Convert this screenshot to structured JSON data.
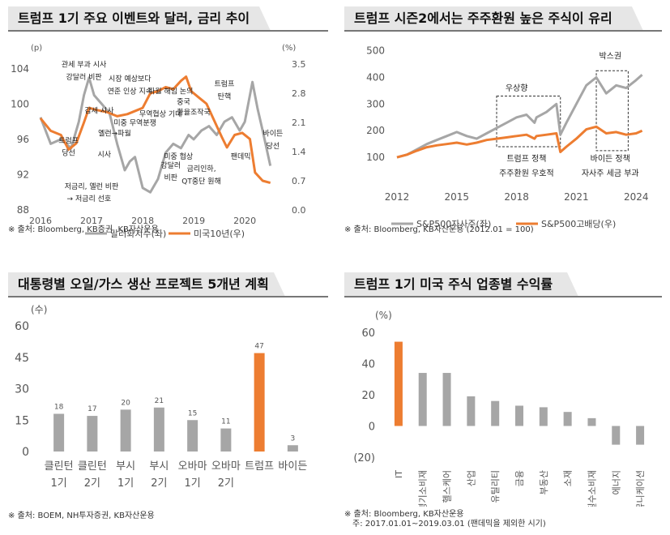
{
  "chart_data": [
    {
      "type": "line",
      "title": "트럼프 1기 주요 이벤트와 달러, 금리 추이",
      "ylabel_left": "(p)",
      "ylabel_right": "(%)",
      "x_ticks": [
        "2016",
        "2017",
        "2018",
        "2019",
        "2020"
      ],
      "y_left_ticks": [
        88,
        92,
        96,
        100,
        104
      ],
      "y_right_ticks": [
        0.0,
        0.7,
        1.4,
        2.1,
        2.8,
        3.5
      ],
      "ylim_left": [
        88,
        105
      ],
      "ylim_right": [
        0.0,
        3.6
      ],
      "series": [
        {
          "name": "달러화지수(좌)",
          "color": "#a6a6a6",
          "x": [
            2016.0,
            2016.2,
            2016.4,
            2016.6,
            2016.75,
            2016.85,
            2016.95,
            2017.05,
            2017.2,
            2017.35,
            2017.5,
            2017.65,
            2017.75,
            2017.85,
            2018.0,
            2018.15,
            2018.3,
            2018.45,
            2018.6,
            2018.75,
            2018.9,
            2019.0,
            2019.15,
            2019.3,
            2019.45,
            2019.6,
            2019.75,
            2019.9,
            2020.0,
            2020.15,
            2020.25,
            2020.35,
            2020.5
          ],
          "values": [
            98.5,
            95.5,
            96.0,
            95.0,
            98.0,
            101.0,
            103.0,
            101.0,
            100.0,
            99.0,
            95.5,
            92.5,
            93.5,
            94.0,
            90.5,
            90.0,
            91.5,
            94.5,
            95.5,
            95.0,
            96.5,
            96.0,
            97.0,
            97.5,
            96.5,
            98.0,
            98.5,
            97.0,
            98.0,
            102.5,
            99.5,
            97.0,
            93.0
          ]
        },
        {
          "name": "미국10년(우)",
          "color": "#ed7d31",
          "x": [
            2016.0,
            2016.2,
            2016.4,
            2016.55,
            2016.7,
            2016.85,
            2016.95,
            2017.1,
            2017.3,
            2017.5,
            2017.7,
            2017.9,
            2018.0,
            2018.15,
            2018.3,
            2018.45,
            2018.6,
            2018.75,
            2018.85,
            2018.95,
            2019.1,
            2019.25,
            2019.4,
            2019.55,
            2019.65,
            2019.8,
            2019.95,
            2020.1,
            2020.2,
            2020.35,
            2020.5
          ],
          "values": [
            2.2,
            1.9,
            1.8,
            1.45,
            1.6,
            2.1,
            2.45,
            2.4,
            2.35,
            2.25,
            2.3,
            2.4,
            2.45,
            2.8,
            2.85,
            2.95,
            2.9,
            3.1,
            3.2,
            2.85,
            2.7,
            2.55,
            2.15,
            1.75,
            1.5,
            1.8,
            1.85,
            1.7,
            0.9,
            0.7,
            0.65
          ]
        }
      ],
      "annotations": [
        {
          "text": "관세 부과 시사",
          "x": 2016.85,
          "y": 104.2
        },
        {
          "text": "강달러 비판",
          "x": 2016.85,
          "y": 102.8
        },
        {
          "text": "시장 예상보다",
          "x": 2017.75,
          "y": 102.6
        },
        {
          "text": "연준 인상 지속",
          "x": 2017.75,
          "y": 101.2
        },
        {
          "text": "파월 해임 논의",
          "x": 2018.55,
          "y": 101.2
        },
        {
          "text": "중국",
          "x": 2018.8,
          "y": 100.0
        },
        {
          "text": "환율조작국",
          "x": 2019.0,
          "y": 98.8
        },
        {
          "text": "트럼프",
          "x": 2019.6,
          "y": 102.0
        },
        {
          "text": "탄핵",
          "x": 2019.6,
          "y": 100.6
        },
        {
          "text": "감세 시사",
          "x": 2017.15,
          "y": 99.0
        },
        {
          "text": "미중 무역분쟁",
          "x": 2017.85,
          "y": 97.6
        },
        {
          "text": "무역협상 기대",
          "x": 2018.35,
          "y": 98.6
        },
        {
          "text": "옐런→파월",
          "x": 2017.45,
          "y": 96.4
        },
        {
          "text": "트럼프",
          "x": 2016.55,
          "y": 95.6
        },
        {
          "text": "당선",
          "x": 2016.55,
          "y": 94.2
        },
        {
          "text": "시사",
          "x": 2017.25,
          "y": 94.0
        },
        {
          "text": "미중 협상",
          "x": 2018.7,
          "y": 93.8
        },
        {
          "text": "강달러",
          "x": 2018.55,
          "y": 92.8
        },
        {
          "text": "비판",
          "x": 2018.55,
          "y": 91.4
        },
        {
          "text": "금리인하,",
          "x": 2019.15,
          "y": 92.4
        },
        {
          "text": "QT중단 원해",
          "x": 2019.15,
          "y": 91.0
        },
        {
          "text": "팬데믹",
          "x": 2019.92,
          "y": 93.8
        },
        {
          "text": "바이든",
          "x": 2020.55,
          "y": 96.4
        },
        {
          "text": "당선",
          "x": 2020.55,
          "y": 95.0
        },
        {
          "text": "저금리, 옐런 비판",
          "x": 2017.0,
          "y": 90.4
        },
        {
          "text": "→ 저금리 선호",
          "x": 2016.95,
          "y": 89.0
        }
      ],
      "source": "※ 출처: Bloomberg, KB증권, KB자산운용"
    },
    {
      "type": "line",
      "title": "트럼프 시즌2에서는 주주환원 높은 주식이 유리",
      "x_ticks": [
        "2012",
        "2015",
        "2018",
        "2021",
        "2024"
      ],
      "y_ticks": [
        100,
        200,
        300,
        400,
        500
      ],
      "ylim": [
        0,
        520
      ],
      "series": [
        {
          "name": "S&P500자사주(좌)",
          "color": "#a6a6a6",
          "x": [
            2012.0,
            2012.5,
            2013.0,
            2013.5,
            2014.0,
            2014.5,
            2015.0,
            2015.5,
            2016.0,
            2016.5,
            2017.0,
            2017.5,
            2018.0,
            2018.5,
            2018.9,
            2019.0,
            2019.5,
            2020.0,
            2020.2,
            2020.5,
            2021.0,
            2021.5,
            2022.0,
            2022.5,
            2023.0,
            2023.5,
            2024.0,
            2024.3
          ],
          "values": [
            100,
            110,
            130,
            150,
            165,
            180,
            195,
            180,
            170,
            190,
            210,
            230,
            250,
            260,
            230,
            250,
            270,
            300,
            185,
            230,
            300,
            370,
            400,
            340,
            370,
            360,
            390,
            410
          ]
        },
        {
          "name": "S&P500고배당(우)",
          "color": "#ed7d31",
          "x": [
            2012.0,
            2012.5,
            2013.0,
            2013.5,
            2014.0,
            2014.5,
            2015.0,
            2015.5,
            2016.0,
            2016.5,
            2017.0,
            2017.5,
            2018.0,
            2018.5,
            2018.9,
            2019.0,
            2019.5,
            2020.0,
            2020.2,
            2020.5,
            2021.0,
            2021.5,
            2022.0,
            2022.5,
            2023.0,
            2023.5,
            2024.0,
            2024.3
          ],
          "values": [
            100,
            110,
            125,
            138,
            145,
            150,
            155,
            148,
            155,
            165,
            170,
            175,
            180,
            185,
            170,
            180,
            185,
            190,
            120,
            140,
            170,
            205,
            215,
            190,
            195,
            185,
            190,
            200
          ]
        }
      ],
      "annotations": [
        {
          "text": "우상향",
          "x": 2018.0,
          "y": 350
        },
        {
          "text": "트럼프 정책",
          "x": 2018.5,
          "y": 85
        },
        {
          "text": "주주환원 우호적",
          "x": 2018.5,
          "y": 30
        },
        {
          "text": "박스권",
          "x": 2022.7,
          "y": 470
        },
        {
          "text": "바이든 정책",
          "x": 2022.7,
          "y": 85
        },
        {
          "text": "자사주 세금 부과",
          "x": 2022.7,
          "y": 30
        }
      ],
      "boxes": [
        {
          "x": [
            2017.0,
            2020.2
          ],
          "y": [
            140,
            330
          ]
        },
        {
          "x": [
            2022.0,
            2023.6
          ],
          "y": [
            125,
            425
          ]
        }
      ],
      "source": "※ 출처: Bloomberg, KB자산운용 (2012.01 = 100)"
    },
    {
      "type": "bar",
      "title": "대통령별 오일/가스 생산 프로젝트 5개년 계획",
      "ylabel": "(수)",
      "categories": [
        [
          "클린턴",
          "1기"
        ],
        [
          "클린턴",
          "2기"
        ],
        [
          "부시",
          "1기"
        ],
        [
          "부시",
          "2기"
        ],
        [
          "오바마",
          "1기"
        ],
        [
          "오바마",
          "2기"
        ],
        [
          "트럼프",
          ""
        ],
        [
          "바이든",
          ""
        ]
      ],
      "values": [
        18,
        17,
        20,
        21,
        15,
        11,
        47,
        3
      ],
      "highlight_index": 6,
      "colors": {
        "default": "#a6a6a6",
        "highlight": "#ed7d31"
      },
      "y_ticks": [
        0,
        15,
        30,
        45,
        60
      ],
      "ylim": [
        0,
        60
      ],
      "source": "※ 출처: BOEM, NH투자증권, KB자산운용"
    },
    {
      "type": "bar",
      "title": "트럼프 1기 미국 주식 업종별 수익률",
      "ylabel": "(%)",
      "categories": [
        "IT",
        "경기소비재",
        "헬스케어",
        "산업",
        "유틸리티",
        "금융",
        "부동산",
        "소재",
        "필수소비재",
        "에너지",
        "커뮤니케이션"
      ],
      "values": [
        54,
        34,
        34,
        19,
        16,
        13,
        12,
        9,
        5,
        -12,
        -12
      ],
      "highlight_index": 0,
      "colors": {
        "default": "#a6a6a6",
        "highlight": "#ed7d31"
      },
      "y_ticks": [
        -20,
        0,
        20,
        40,
        60
      ],
      "y_tick_labels": [
        "(20)",
        "0",
        "20",
        "40",
        "60"
      ],
      "ylim": [
        -20,
        60
      ],
      "source": "※ 출처: Bloomberg, KB자산운용",
      "note": "주: 2017.01.01~2019.03.01 (팬데믹을 제외한 시기)"
    }
  ]
}
